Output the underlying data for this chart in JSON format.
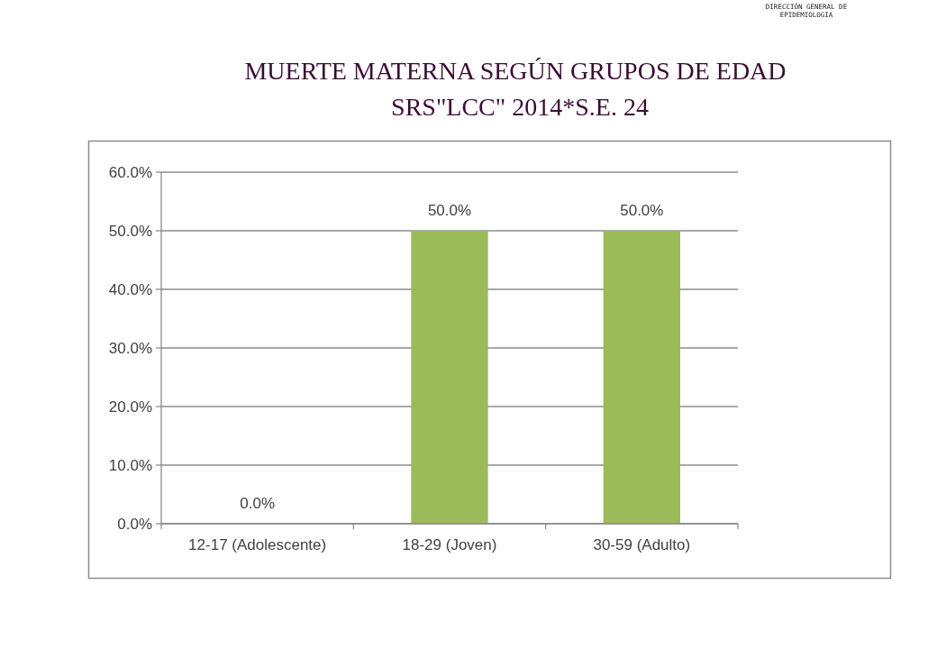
{
  "chart_data": {
    "type": "bar",
    "title": "MUERTE MATERNA SEGÚN GRUPOS DE EDAD",
    "subtitle": "SRS\"LCC\" 2014*S.E. 24",
    "annotations": [
      "DIRECCIÓN GENERAL DE EPIDEMIOLOGIA"
    ],
    "categories": [
      "12-17 (Adolescente)",
      "18-29 (Joven)",
      "30-59 (Adulto)"
    ],
    "values": [
      0,
      50,
      50
    ],
    "value_labels": [
      "0.0%",
      "50.0%",
      "50.0%"
    ],
    "color": "#9bbb59",
    "ylim": [
      0,
      60
    ],
    "yticks": [
      {
        "value": 0,
        "label": "0.0%"
      },
      {
        "value": 10,
        "label": "10.0%"
      },
      {
        "value": 20,
        "label": "20.0%"
      },
      {
        "value": 30,
        "label": "30.0%"
      },
      {
        "value": 40,
        "label": "40.0%"
      },
      {
        "value": 50,
        "label": "50.0%"
      },
      {
        "value": 60,
        "label": "60.0%"
      }
    ],
    "grid": "y"
  }
}
